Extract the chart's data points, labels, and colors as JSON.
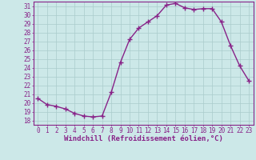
{
  "x": [
    0,
    1,
    2,
    3,
    4,
    5,
    6,
    7,
    8,
    9,
    10,
    11,
    12,
    13,
    14,
    15,
    16,
    17,
    18,
    19,
    20,
    21,
    22,
    23
  ],
  "y": [
    20.5,
    19.8,
    19.6,
    19.3,
    18.8,
    18.5,
    18.4,
    18.5,
    21.2,
    24.6,
    27.2,
    28.5,
    29.2,
    29.9,
    31.1,
    31.3,
    30.8,
    30.6,
    30.7,
    30.7,
    29.2,
    26.5,
    24.2,
    22.5
  ],
  "line_color": "#882288",
  "marker": "+",
  "marker_size": 4,
  "bg_color": "#cce8e8",
  "grid_color": "#aacccc",
  "axis_color": "#882288",
  "tick_color": "#882288",
  "xlabel": "Windchill (Refroidissement éolien,°C)",
  "ylabel": "",
  "ylim": [
    17.5,
    31.5
  ],
  "xlim": [
    -0.5,
    23.5
  ],
  "yticks": [
    18,
    19,
    20,
    21,
    22,
    23,
    24,
    25,
    26,
    27,
    28,
    29,
    30,
    31
  ],
  "xtick_labels": [
    "0",
    "1",
    "2",
    "3",
    "4",
    "5",
    "6",
    "7",
    "8",
    "9",
    "1011",
    "1213",
    "1415",
    "1617",
    "1819",
    "2021",
    "2223"
  ],
  "tick_fontsize": 5.5,
  "label_fontsize": 6.5,
  "linewidth": 1.0,
  "marker_lw": 1.0
}
